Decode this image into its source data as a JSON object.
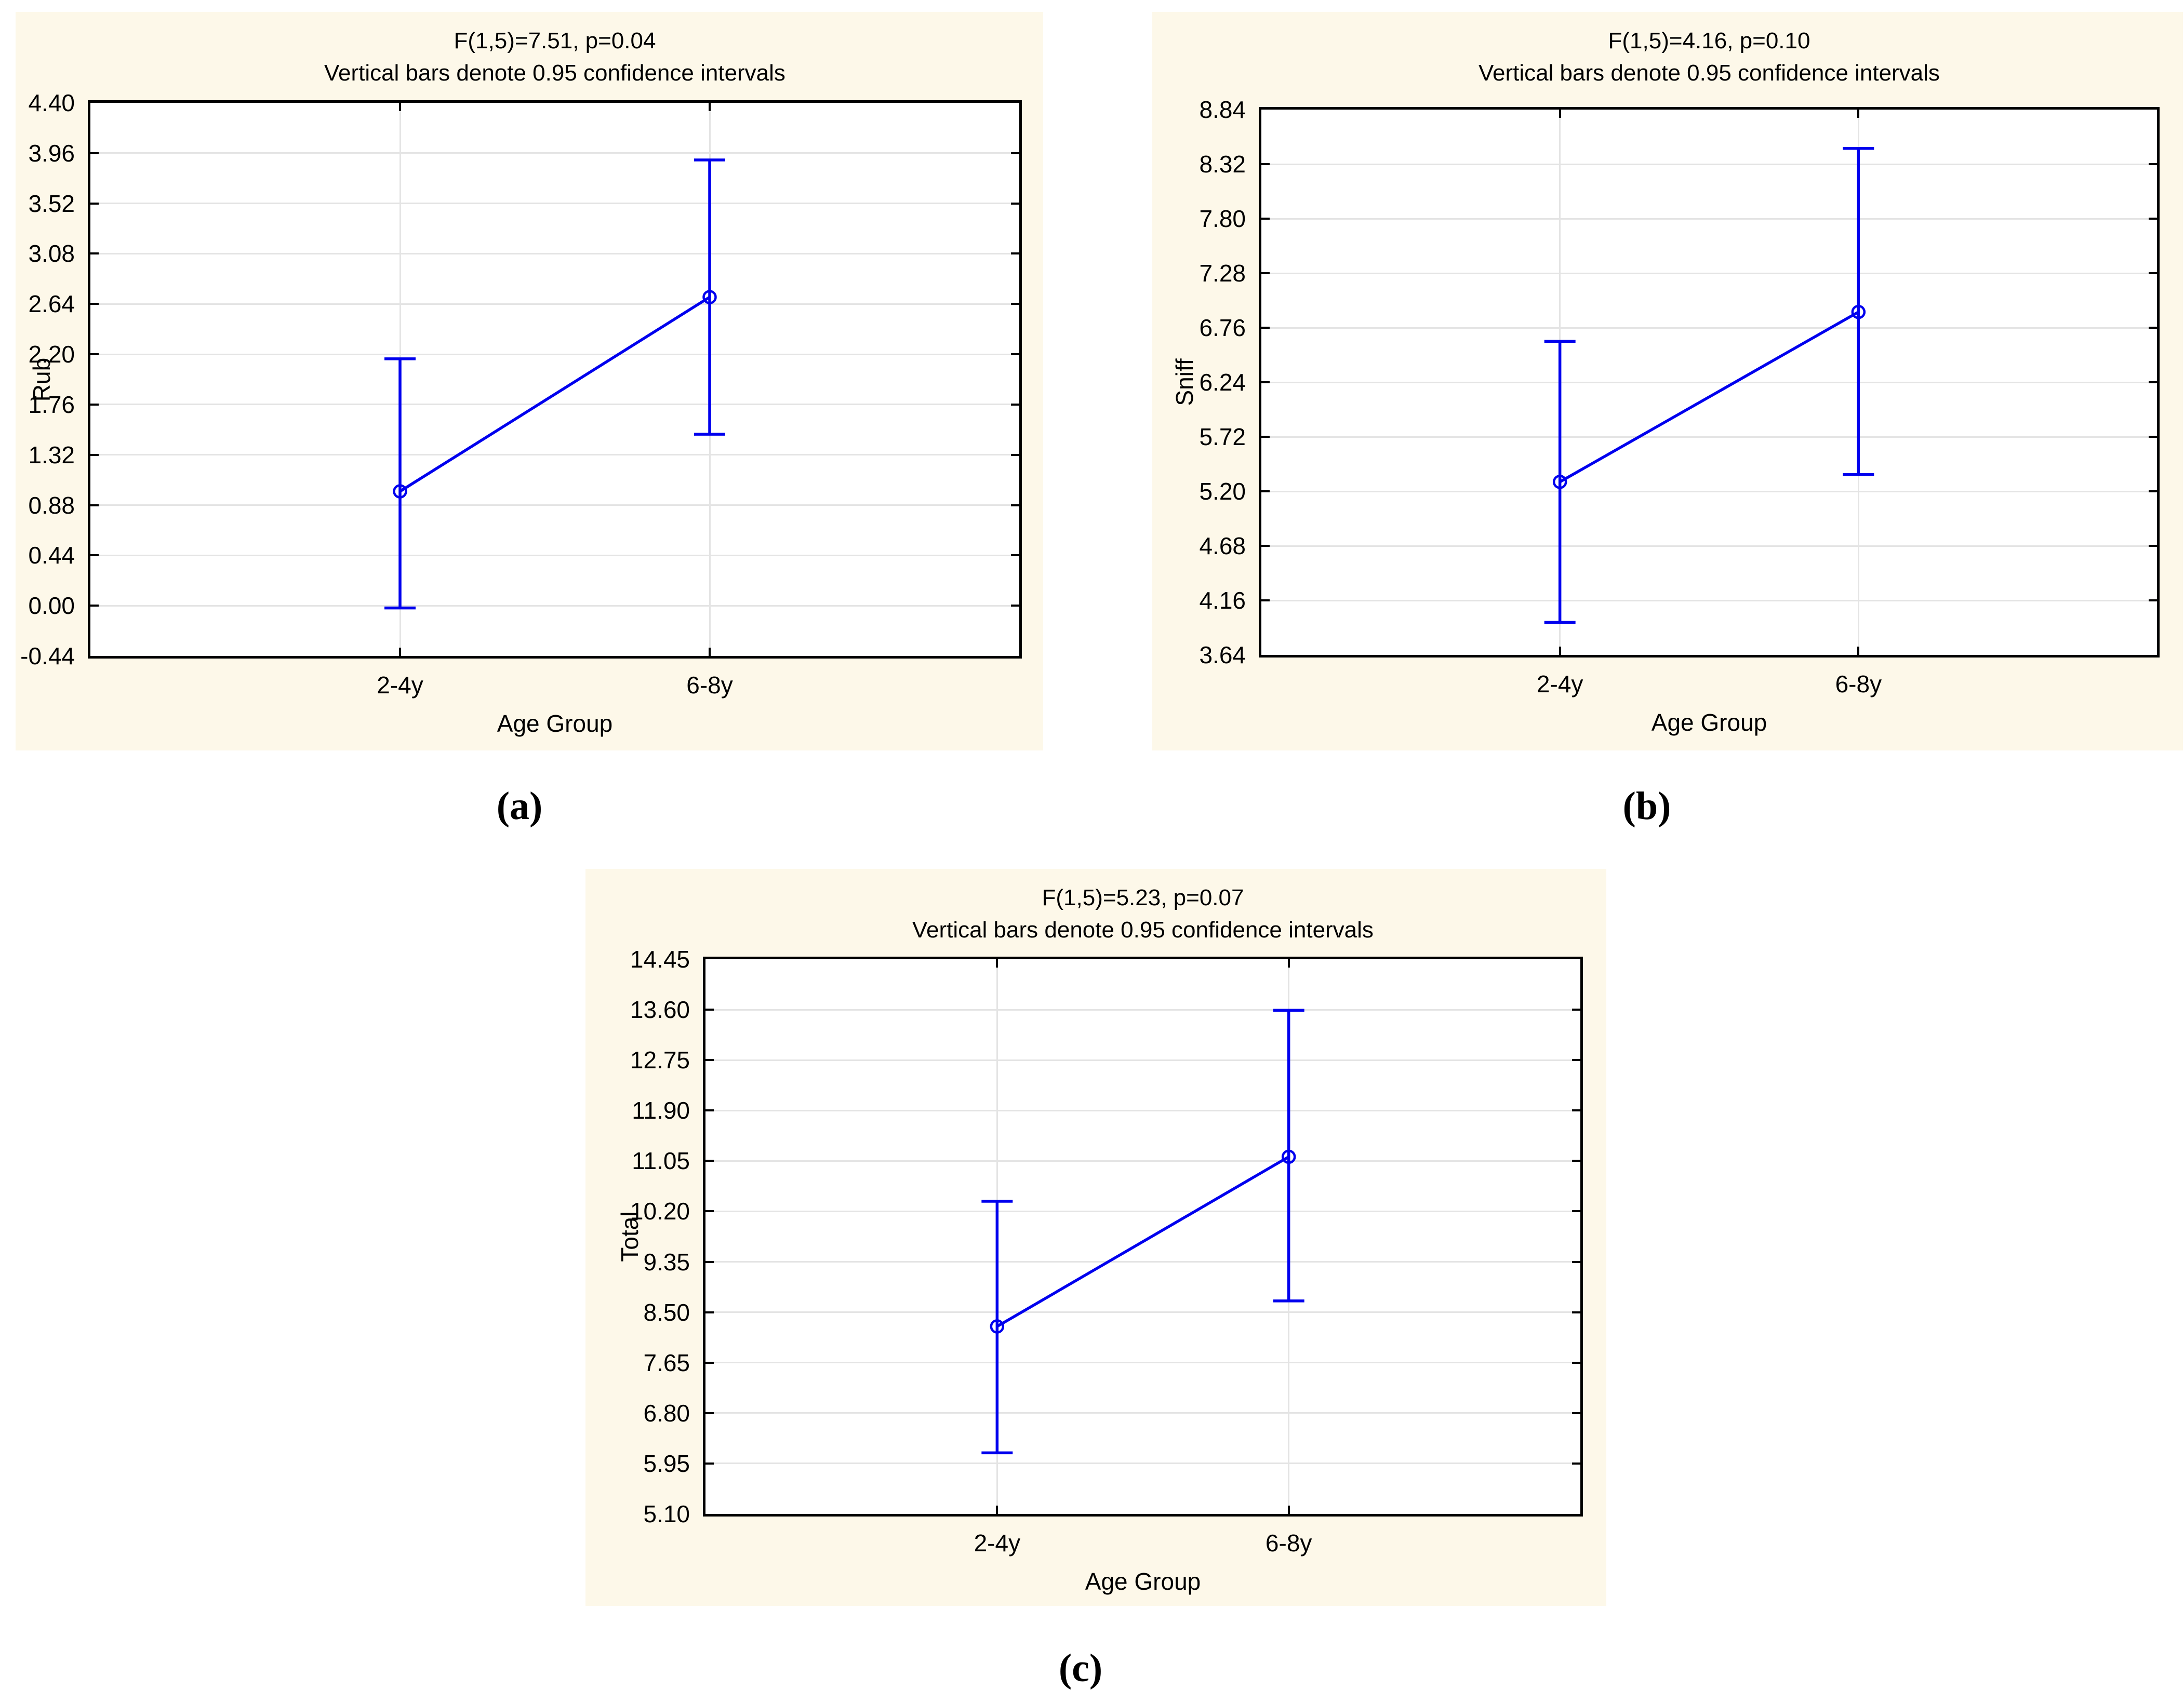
{
  "colors": {
    "page_background": "#ffffff",
    "panel_background": "#fdf8e9",
    "accent_blue": "#0000ee",
    "grid_color": "#e4e4e4",
    "axis_color": "#000000"
  },
  "panels": [
    {
      "letter": "(a)"
    },
    {
      "letter": "(b)"
    },
    {
      "letter": "(c)"
    }
  ],
  "chart_data": [
    {
      "type": "line",
      "title": "F(1,5)=7.51, p=0.04",
      "subtitle": "Vertical bars denote 0.95 confidence intervals",
      "xlabel": "Age Group",
      "ylabel": "Rub",
      "categories": [
        "2-4y",
        "6-8y"
      ],
      "series": [
        {
          "name": "mean",
          "values": [
            1.0,
            2.7
          ]
        }
      ],
      "ci_low": [
        -0.02,
        1.5
      ],
      "ci_high": [
        2.16,
        3.9
      ],
      "yticks": [
        4.4,
        3.96,
        3.52,
        3.08,
        2.64,
        2.2,
        1.76,
        1.32,
        0.88,
        0.44,
        0.0,
        -0.44
      ],
      "ylim": [
        -0.44,
        4.4
      ],
      "grid": true,
      "legend": "none",
      "error_bars": "0.95 confidence interval"
    },
    {
      "type": "line",
      "title": "F(1,5)=4.16, p=0.10",
      "subtitle": "Vertical bars denote 0.95 confidence intervals",
      "xlabel": "Age Group",
      "ylabel": "Sniff",
      "categories": [
        "2-4y",
        "6-8y"
      ],
      "series": [
        {
          "name": "mean",
          "values": [
            5.29,
            6.91
          ]
        }
      ],
      "ci_low": [
        3.95,
        5.36
      ],
      "ci_high": [
        6.63,
        8.47
      ],
      "yticks": [
        8.84,
        8.32,
        7.8,
        7.28,
        6.76,
        6.24,
        5.72,
        5.2,
        4.68,
        4.16,
        3.64
      ],
      "ylim": [
        3.64,
        8.84
      ],
      "grid": true,
      "legend": "none",
      "error_bars": "0.95 confidence interval"
    },
    {
      "type": "line",
      "title": "F(1,5)=5.23, p=0.07",
      "subtitle": "Vertical bars denote 0.95 confidence intervals",
      "xlabel": "Age Group",
      "ylabel": "Total",
      "categories": [
        "2-4y",
        "6-8y"
      ],
      "series": [
        {
          "name": "mean",
          "values": [
            8.26,
            11.12
          ]
        }
      ],
      "ci_low": [
        6.13,
        8.69
      ],
      "ci_high": [
        10.37,
        13.59
      ],
      "yticks": [
        14.45,
        13.6,
        12.75,
        11.9,
        11.05,
        10.2,
        9.35,
        8.5,
        7.65,
        6.8,
        5.95,
        5.1
      ],
      "ylim": [
        5.1,
        14.45
      ],
      "grid": true,
      "legend": "none",
      "error_bars": "0.95 confidence interval"
    }
  ]
}
